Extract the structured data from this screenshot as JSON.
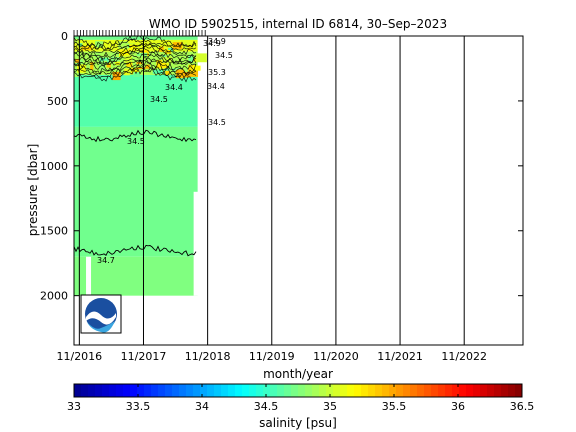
{
  "chart_data": {
    "type": "heatmap",
    "title": "WMO ID 5902515, internal ID 6814, 30–Sep–2023",
    "xlabel": "month/year",
    "ylabel": "pressure [dbar]",
    "x_ticks": [
      "11/2016",
      "11/2017",
      "11/2018",
      "11/2019",
      "11/2020",
      "11/2021",
      "11/2022"
    ],
    "xlim": [
      "2016-10",
      "2023-10"
    ],
    "y_ticks": [
      0,
      500,
      1000,
      1500,
      2000
    ],
    "ylim": [
      0,
      2380
    ],
    "y_reversed": true,
    "data_range": {
      "start": "2016-10",
      "end": "2018-11"
    },
    "profile_max_pressure": 2000,
    "layers": [
      {
        "p_top": 0,
        "p_bottom": 30,
        "salinity": 34.7
      },
      {
        "p_top": 30,
        "p_bottom": 120,
        "salinity": 35.1
      },
      {
        "p_top": 120,
        "p_bottom": 300,
        "salinity": 34.9
      },
      {
        "p_top": 300,
        "p_bottom": 700,
        "salinity": 34.6
      },
      {
        "p_top": 700,
        "p_bottom": 1700,
        "salinity": 34.7
      },
      {
        "p_top": 1700,
        "p_bottom": 2000,
        "salinity": 34.75
      }
    ],
    "contours": [
      {
        "label": "34.5",
        "mean_pressure": 770
      },
      {
        "label": "34.7",
        "mean_pressure": 1650
      }
    ],
    "contour_labels": [
      "34.9",
      "34.9",
      "35.3",
      "34.4",
      "34.5",
      "34.4",
      "34.5",
      "34.5",
      "34.5",
      "34.7"
    ],
    "colorbar": {
      "label": "salinity [psu]",
      "min": 33,
      "max": 36.5,
      "ticks": [
        "33",
        "33.5",
        "34",
        "34.5",
        "35",
        "35.5",
        "36",
        "36.5"
      ],
      "colormap": "jet"
    },
    "logo": "NOAA"
  }
}
